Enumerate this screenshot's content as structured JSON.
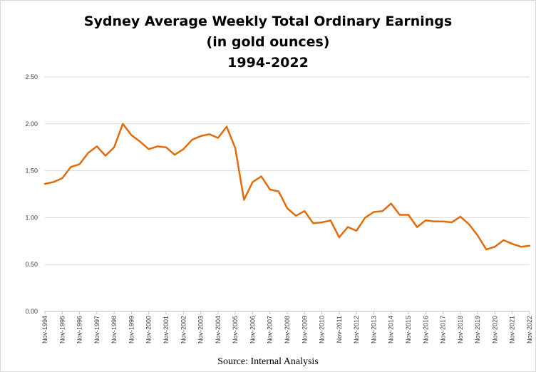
{
  "chart_data": {
    "type": "line",
    "title": "Sydney Average Weekly Total Ordinary Earnings",
    "subtitle": "(in gold ounces)",
    "subtitle2": "1994-2022",
    "source": "Source: Internal Analysis",
    "ylim": [
      0,
      2.5
    ],
    "yticks": [
      "0.00",
      "0.50",
      "1.00",
      "1.50",
      "2.00",
      "2.50"
    ],
    "xticks": [
      "Nov-1994",
      "Nov-1995",
      "Nov-1996",
      "Nov-1997",
      "Nov-1998",
      "Nov-1999",
      "Nov-2000",
      "Nov-2001",
      "Nov-2002",
      "Nov-2003",
      "Nov-2004",
      "Nov-2005",
      "Nov-2006",
      "Nov-2007",
      "Nov-2008",
      "Nov-2009",
      "Nov-2010",
      "Nov-2011",
      "Nov-2012",
      "Nov-2013",
      "Nov-2014",
      "Nov-2015",
      "Nov-2016",
      "Nov-2017",
      "Nov-2018",
      "Nov-2019",
      "Nov-2020",
      "Nov-2021",
      "Nov-2022"
    ],
    "grid": true,
    "line_color": "#E26B0A",
    "x": [
      1994.83,
      1995.33,
      1995.83,
      1996.33,
      1996.83,
      1997.33,
      1997.83,
      1998.33,
      1998.83,
      1999.33,
      1999.83,
      2000.33,
      2000.83,
      2001.33,
      2001.83,
      2002.33,
      2002.83,
      2003.33,
      2003.83,
      2004.33,
      2004.83,
      2005.33,
      2005.83,
      2006.33,
      2006.83,
      2007.33,
      2007.83,
      2008.33,
      2008.83,
      2009.33,
      2009.83,
      2010.33,
      2010.83,
      2011.33,
      2011.83,
      2012.33,
      2012.83,
      2013.33,
      2013.83,
      2014.33,
      2014.83,
      2015.33,
      2015.83,
      2016.33,
      2016.83,
      2017.33,
      2017.83,
      2018.33,
      2018.83,
      2019.33,
      2019.83,
      2020.33,
      2020.83,
      2021.33,
      2021.83,
      2022.33,
      2022.83
    ],
    "values": [
      1.36,
      1.38,
      1.42,
      1.54,
      1.57,
      1.69,
      1.76,
      1.66,
      1.75,
      2.0,
      1.88,
      1.81,
      1.73,
      1.76,
      1.75,
      1.67,
      1.73,
      1.83,
      1.87,
      1.89,
      1.85,
      1.97,
      1.74,
      1.19,
      1.38,
      1.44,
      1.3,
      1.28,
      1.1,
      1.02,
      1.07,
      0.94,
      0.95,
      0.97,
      0.79,
      0.9,
      0.86,
      1.0,
      1.06,
      1.07,
      1.15,
      1.03,
      1.03,
      0.9,
      0.97,
      0.96,
      0.96,
      0.95,
      1.01,
      0.93,
      0.81,
      0.66,
      0.69,
      0.76,
      0.72,
      0.69,
      0.7
    ]
  }
}
